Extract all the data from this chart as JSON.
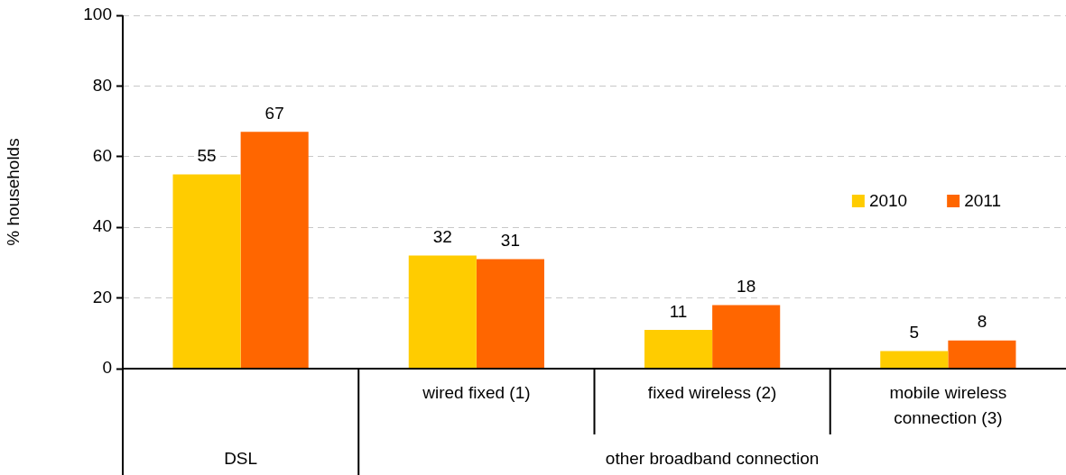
{
  "chart_data": {
    "type": "bar",
    "categories": [
      null,
      "wired fixed (1)",
      "fixed wireless (2)",
      "mobile wireless connection (3)"
    ],
    "series": [
      {
        "name": "2010",
        "color": "#ffcc00",
        "values": [
          55,
          32,
          11,
          5
        ]
      },
      {
        "name": "2011",
        "color": "#ff6600",
        "values": [
          67,
          31,
          18,
          8
        ]
      }
    ],
    "ylabel": "% households",
    "ylim": [
      0,
      100
    ],
    "yticks": [
      0,
      20,
      40,
      60,
      80,
      100
    ],
    "grid": "y",
    "legend": "right",
    "data_labels": true,
    "annotations": [
      "DSL",
      "other broadband connection"
    ]
  }
}
